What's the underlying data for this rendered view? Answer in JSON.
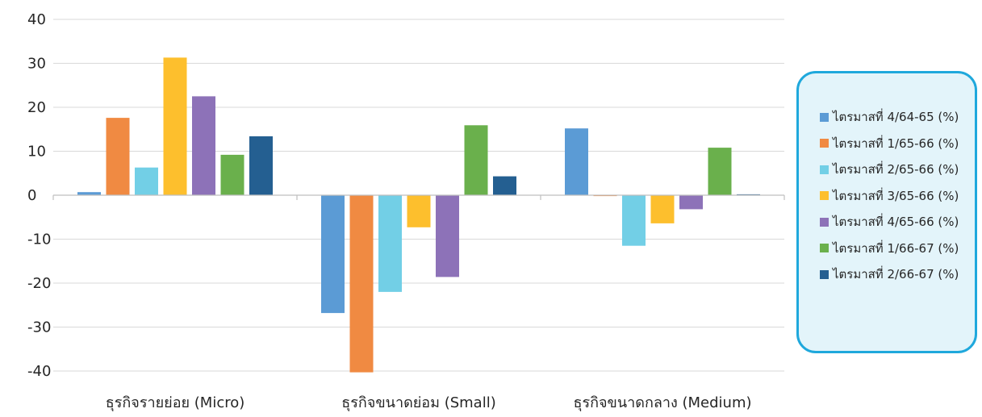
{
  "chart_data": {
    "type": "bar",
    "categories": [
      "ธุรกิจรายย่อย (Micro)",
      "ธุรกิจขนาดย่อม (Small)",
      "ธุรกิจขนาดกลาง (Medium)"
    ],
    "series": [
      {
        "name": "ไตรมาสที่ 4/64-65 (%)",
        "color": "#5b9bd5",
        "values": [
          0.7,
          -26.8,
          15.2
        ]
      },
      {
        "name": "ไตรมาสที่ 1/65-66 (%)",
        "color": "#f08a42",
        "values": [
          17.6,
          -40.3,
          -0.2
        ]
      },
      {
        "name": "ไตรมาสที่ 2/65-66 (%)",
        "color": "#72cfe6",
        "values": [
          6.3,
          -22.0,
          -11.5
        ]
      },
      {
        "name": "ไตรมาสที่ 3/65-66 (%)",
        "color": "#fdbf2d",
        "values": [
          31.3,
          -7.3,
          -6.4
        ]
      },
      {
        "name": "ไตรมาสที่ 4/65-66 (%)",
        "color": "#8d72b8",
        "values": [
          22.5,
          -18.6,
          -3.2
        ]
      },
      {
        "name": "ไตรมาสที่ 1/66-67 (%)",
        "color": "#6ab04c",
        "values": [
          9.2,
          15.9,
          10.8
        ]
      },
      {
        "name": "ไตรมาสที่ 2/66-67 (%)",
        "color": "#245f91",
        "values": [
          13.4,
          4.3,
          0.2
        ]
      }
    ],
    "ylim": [
      -40,
      40
    ],
    "yticks": [
      -40,
      -30,
      -20,
      -10,
      0,
      10,
      20,
      30,
      40
    ],
    "grid": true,
    "legend": "right",
    "title": "",
    "xlabel": "",
    "ylabel": ""
  }
}
